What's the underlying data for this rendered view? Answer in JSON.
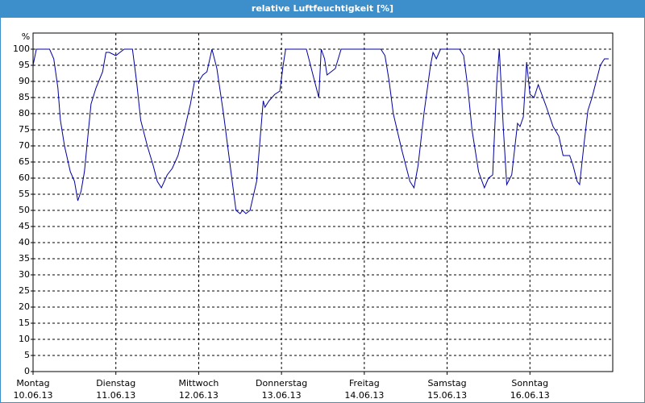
{
  "chart_data": {
    "type": "line",
    "title": "relative Luftfeuchtigkeit [%]",
    "y_label": "%",
    "xlim": [
      0,
      7
    ],
    "ylim": [
      0,
      105
    ],
    "yticks": [
      0,
      5,
      10,
      15,
      20,
      25,
      30,
      35,
      40,
      45,
      50,
      55,
      60,
      65,
      70,
      75,
      80,
      85,
      90,
      95,
      100
    ],
    "xticks": [
      {
        "value": 0,
        "label": "Montag"
      },
      {
        "value": 1,
        "label": "Dienstag"
      },
      {
        "value": 2,
        "label": "Mittwoch"
      },
      {
        "value": 3,
        "label": "Donnerstag"
      },
      {
        "value": 4,
        "label": "Freitag"
      },
      {
        "value": 5,
        "label": "Samstag"
      },
      {
        "value": 6,
        "label": "Sonntag"
      }
    ],
    "xtick_dates": [
      "10.06.13",
      "11.06.13",
      "12.06.13",
      "13.06.13",
      "14.06.13",
      "15.06.13",
      "16.06.13"
    ],
    "grid": true,
    "series": [
      {
        "name": "relative Luftfeuchtigkeit",
        "color": "#0000a0",
        "x": [
          0,
          0.04,
          0.2,
          0.25,
          0.3,
          0.33,
          0.38,
          0.45,
          0.5,
          0.54,
          0.58,
          0.62,
          0.7,
          0.76,
          0.84,
          0.88,
          0.92,
          1.0,
          1.05,
          1.1,
          1.2,
          1.25,
          1.3,
          1.38,
          1.45,
          1.5,
          1.55,
          1.62,
          1.68,
          1.75,
          1.82,
          1.9,
          1.95,
          2.0,
          2.05,
          2.1,
          2.16,
          2.22,
          2.3,
          2.4,
          2.45,
          2.5,
          2.53,
          2.57,
          2.62,
          2.7,
          2.78,
          2.8,
          2.85,
          2.92,
          2.98,
          3.02,
          3.05,
          3.2,
          3.3,
          3.38,
          3.45,
          3.48,
          3.52,
          3.55,
          3.6,
          3.65,
          3.72,
          4.0,
          4.2,
          4.25,
          4.3,
          4.35,
          4.45,
          4.55,
          4.6,
          4.65,
          4.72,
          4.8,
          4.83,
          4.87,
          4.92,
          5.0,
          5.15,
          5.2,
          5.25,
          5.3,
          5.38,
          5.45,
          5.5,
          5.55,
          5.6,
          5.63,
          5.68,
          5.72,
          5.78,
          5.85,
          5.88,
          5.92,
          5.96,
          6.0,
          6.05,
          6.1,
          6.2,
          6.28,
          6.35,
          6.4,
          6.48,
          6.52,
          6.57,
          6.6,
          6.65,
          6.7,
          6.75,
          6.85,
          6.9,
          6.95
        ],
        "values": [
          95,
          100,
          100,
          97,
          88,
          78,
          70,
          62,
          59,
          53,
          56,
          62,
          83,
          88,
          93,
          99,
          99,
          98,
          99,
          100,
          100,
          90,
          78,
          70,
          64,
          59,
          57,
          61,
          63,
          67,
          74,
          83,
          90,
          90,
          92,
          93,
          100,
          94,
          80,
          60,
          50,
          49,
          50,
          49,
          50,
          59,
          84,
          82,
          84,
          86,
          87,
          95,
          100,
          100,
          100,
          92,
          85,
          100,
          97,
          92,
          93,
          94,
          100,
          100,
          100,
          98,
          90,
          80,
          69,
          59,
          57,
          64,
          80,
          95,
          99,
          97,
          100,
          100,
          100,
          98,
          88,
          75,
          62,
          57,
          60,
          61,
          90,
          100,
          75,
          58,
          61,
          77,
          76,
          79,
          96,
          86,
          85,
          89,
          82,
          76,
          73,
          67,
          67,
          64,
          59,
          58,
          70,
          81,
          85,
          95,
          97,
          97
        ]
      }
    ]
  }
}
